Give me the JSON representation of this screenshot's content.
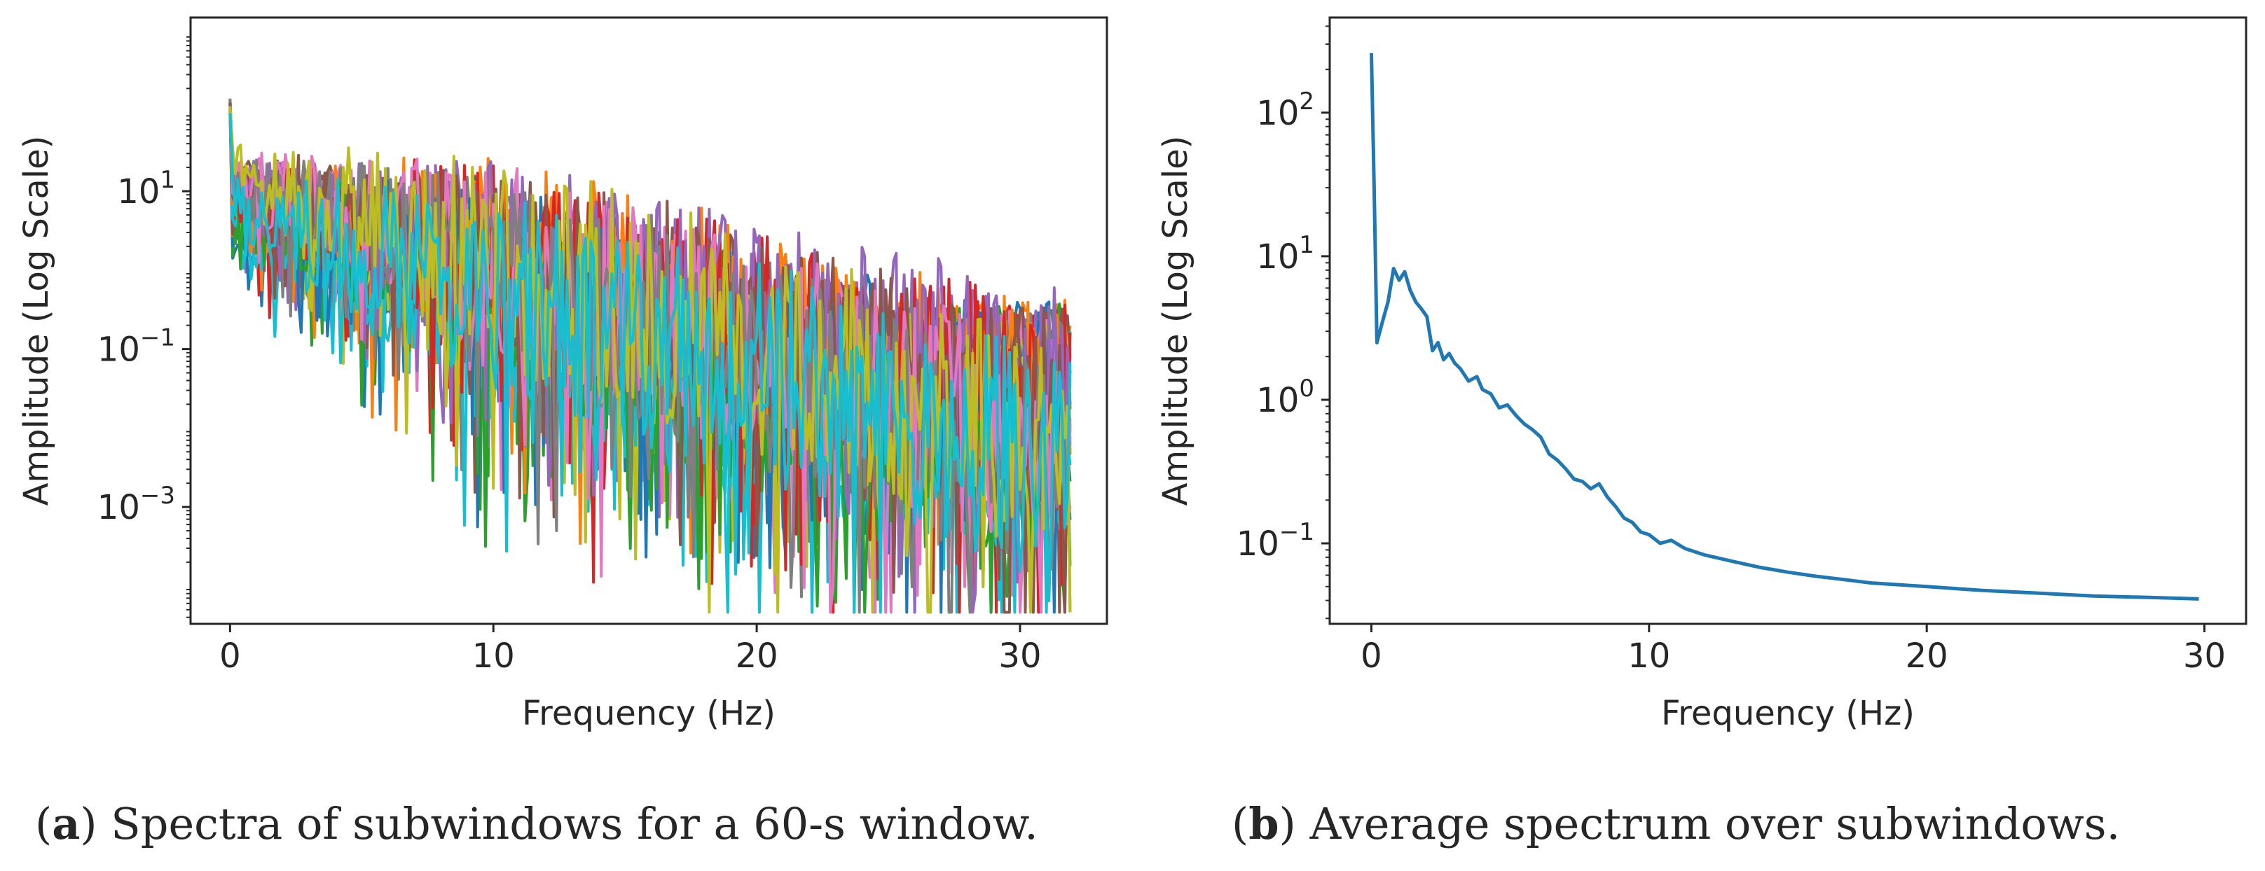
{
  "chart_data": [
    {
      "panel": "a",
      "type": "line",
      "title": "",
      "xlabel": "Frequency (Hz)",
      "ylabel": "Amplitude (Log Scale)",
      "yscale": "log",
      "xlim": [
        -1.5,
        33.3
      ],
      "ylim": [
        3.31e-05,
        1585
      ],
      "xticks": [
        0,
        10,
        20,
        30
      ],
      "xtick_labels": [
        "0",
        "10",
        "20",
        "30"
      ],
      "yticks": [
        10,
        0.1,
        0.001
      ],
      "ytick_labels": [
        {
          "base": "10",
          "exp": "1"
        },
        {
          "base": "10",
          "exp": "−1"
        },
        {
          "base": "10",
          "exp": "−3"
        }
      ],
      "x_end": 32,
      "peak_value": 150,
      "series_count": 40,
      "series_tail_levels": [
        0.19,
        0.17,
        0.15,
        0.135,
        0.12,
        0.105,
        0.092,
        0.08,
        0.07,
        0.06,
        0.052,
        0.045,
        0.039,
        0.034,
        0.029,
        0.025,
        0.021,
        0.018,
        0.015,
        0.013,
        0.011,
        0.0095,
        0.008,
        0.0068,
        0.0058,
        0.005,
        0.0042,
        0.0036,
        0.003,
        0.0025,
        0.0021,
        0.0018,
        0.0015,
        0.0012,
        0.001,
        0.00085,
        0.0007,
        0.0006,
        0.0005,
        0.0004
      ],
      "series_colors": [
        "#1f77b4",
        "#ff7f0e",
        "#2ca02c",
        "#d62728",
        "#9467bd",
        "#8c564b",
        "#e377c2",
        "#7f7f7f",
        "#bcbd22",
        "#17becf"
      ]
    },
    {
      "panel": "b",
      "type": "line",
      "title": "",
      "xlabel": "Frequency (Hz)",
      "ylabel": "Amplitude (Log Scale)",
      "yscale": "log",
      "xlim": [
        -1.5,
        31.5
      ],
      "ylim": [
        0.0275,
        460
      ],
      "xticks": [
        0,
        10,
        20,
        30
      ],
      "xtick_labels": [
        "0",
        "10",
        "20",
        "30"
      ],
      "yticks": [
        100,
        10,
        1,
        0.1
      ],
      "ytick_labels": [
        {
          "base": "10",
          "exp": "2"
        },
        {
          "base": "10",
          "exp": "1"
        },
        {
          "base": "10",
          "exp": "0"
        },
        {
          "base": "10",
          "exp": "−1"
        }
      ],
      "color": "#1f77b4",
      "series": [
        {
          "name": "Average spectrum",
          "x": [
            0,
            0.1,
            0.2,
            0.4,
            0.6,
            0.8,
            1.0,
            1.2,
            1.4,
            1.6,
            1.8,
            2.0,
            2.2,
            2.4,
            2.6,
            2.8,
            3.0,
            3.2,
            3.5,
            3.8,
            4.0,
            4.3,
            4.6,
            4.9,
            5.2,
            5.5,
            5.8,
            6.1,
            6.4,
            6.7,
            7.0,
            7.3,
            7.6,
            7.9,
            8.2,
            8.5,
            8.8,
            9.1,
            9.4,
            9.7,
            10.0,
            10.4,
            10.8,
            11.3,
            12.0,
            13.0,
            14.0,
            15.0,
            16.0,
            17.0,
            18.0,
            20.0,
            22.0,
            24.0,
            26.0,
            28.0,
            29.8
          ],
          "y": [
            260,
            30,
            2.5,
            3.5,
            4.8,
            8.2,
            6.8,
            7.8,
            5.8,
            4.8,
            4.3,
            3.8,
            2.2,
            2.5,
            1.9,
            2.1,
            1.8,
            1.65,
            1.35,
            1.45,
            1.18,
            1.1,
            0.88,
            0.92,
            0.78,
            0.68,
            0.62,
            0.55,
            0.42,
            0.38,
            0.33,
            0.28,
            0.27,
            0.24,
            0.26,
            0.21,
            0.18,
            0.15,
            0.14,
            0.12,
            0.115,
            0.1,
            0.105,
            0.092,
            0.083,
            0.075,
            0.068,
            0.063,
            0.059,
            0.056,
            0.053,
            0.05,
            0.047,
            0.045,
            0.043,
            0.042,
            0.041
          ]
        }
      ]
    }
  ],
  "captions": {
    "a": {
      "tag": "a",
      "text": "Spectra of subwindows for a 60-s window."
    },
    "b": {
      "tag": "b",
      "text": "Average spectrum over subwindows."
    }
  }
}
